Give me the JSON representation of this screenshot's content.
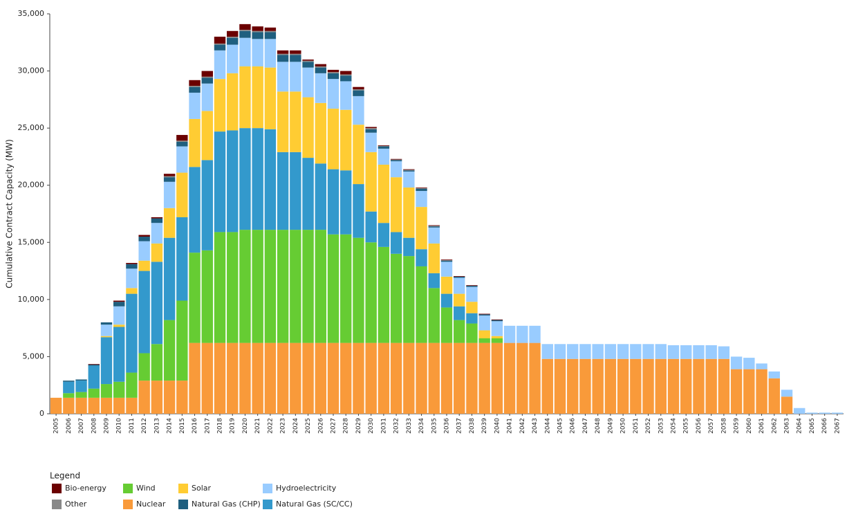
{
  "chart_data": {
    "type": "stacked_bar",
    "y_label": "Cumulative Contract Capacity (MW)",
    "legend_title": "Legend",
    "legend_position": "bottom-left",
    "grid": false,
    "ylim": [
      0,
      35000
    ],
    "yticks": [
      0,
      {
        "value": 5000,
        "label": "5,000"
      },
      {
        "value": 10000,
        "label": "10,000"
      },
      {
        "value": 15000,
        "label": "15,000"
      },
      {
        "value": 20000,
        "label": "20,000"
      },
      {
        "value": 25000,
        "label": "25,000"
      },
      {
        "value": 30000,
        "label": "30,000"
      },
      {
        "value": 35000,
        "label": "35,000"
      }
    ],
    "categories": [
      "2005",
      "2006",
      "2007",
      "2008",
      "2009",
      "2010",
      "2011",
      "2012",
      "2013",
      "2014",
      "2015",
      "2016",
      "2017",
      "2018",
      "2019",
      "2020",
      "2021",
      "2022",
      "2023",
      "2024",
      "2025",
      "2026",
      "2027",
      "2028",
      "2029",
      "2030",
      "2031",
      "2032",
      "2033",
      "2034",
      "2035",
      "2036",
      "2037",
      "2038",
      "2039",
      "2040",
      "2041",
      "2042",
      "2043",
      "2044",
      "2045",
      "2046",
      "2047",
      "2048",
      "2049",
      "2050",
      "2051",
      "2052",
      "2053",
      "2054",
      "2055",
      "2056",
      "2057",
      "2058",
      "2059",
      "2060",
      "2061",
      "2062",
      "2063",
      "2064",
      "2065",
      "2066",
      "2067"
    ],
    "series": [
      {
        "name": "Nuclear",
        "color": "#f99a3a",
        "values": [
          1400,
          1400,
          1400,
          1400,
          1400,
          1400,
          1400,
          2900,
          2900,
          2900,
          2900,
          6200,
          6200,
          6200,
          6200,
          6200,
          6200,
          6200,
          6200,
          6200,
          6200,
          6200,
          6200,
          6200,
          6200,
          6200,
          6200,
          6200,
          6200,
          6200,
          6200,
          6200,
          6200,
          6200,
          6200,
          6200,
          6200,
          6200,
          6200,
          4800,
          4800,
          4800,
          4800,
          4800,
          4800,
          4800,
          4800,
          4800,
          4800,
          4800,
          4800,
          4800,
          4800,
          4800,
          3900,
          3900,
          3900,
          3100,
          1500,
          0,
          0,
          0,
          0
        ]
      },
      {
        "name": "Wind",
        "color": "#66cc33",
        "values": [
          0,
          400,
          500,
          800,
          1200,
          1400,
          2200,
          2400,
          3200,
          5300,
          7000,
          7900,
          8100,
          9700,
          9700,
          9900,
          9900,
          9900,
          9900,
          9900,
          9900,
          9900,
          9500,
          9500,
          9200,
          8800,
          8400,
          7800,
          7600,
          6700,
          4800,
          3100,
          2000,
          1700,
          400,
          400,
          0,
          0,
          0,
          0,
          0,
          0,
          0,
          0,
          0,
          0,
          0,
          0,
          0,
          0,
          0,
          0,
          0,
          0,
          0,
          0,
          0,
          0,
          0,
          0,
          0,
          0,
          0
        ]
      },
      {
        "name": "Natural Gas (SC/CC)",
        "color": "#3399cc",
        "values": [
          0,
          1000,
          1000,
          2000,
          4100,
          4800,
          6900,
          7200,
          7200,
          7200,
          7300,
          7500,
          7900,
          8800,
          8900,
          8900,
          8900,
          8800,
          6800,
          6800,
          6300,
          5800,
          5700,
          5600,
          4700,
          2700,
          2100,
          1900,
          1600,
          1500,
          1300,
          1200,
          1200,
          900,
          0,
          0,
          0,
          0,
          0,
          0,
          0,
          0,
          0,
          0,
          0,
          0,
          0,
          0,
          0,
          0,
          0,
          0,
          0,
          0,
          0,
          0,
          0,
          0,
          0,
          0,
          0,
          0,
          0
        ]
      },
      {
        "name": "Solar",
        "color": "#ffcc33",
        "values": [
          0,
          0,
          0,
          0,
          100,
          200,
          500,
          900,
          1600,
          2600,
          3900,
          4200,
          4300,
          4600,
          5000,
          5400,
          5400,
          5400,
          5300,
          5300,
          5300,
          5300,
          5300,
          5300,
          5200,
          5200,
          5100,
          4800,
          4400,
          3700,
          2600,
          1500,
          1100,
          1000,
          700,
          200,
          0,
          0,
          0,
          0,
          0,
          0,
          0,
          0,
          0,
          0,
          0,
          0,
          0,
          0,
          0,
          0,
          0,
          0,
          0,
          0,
          0,
          0,
          0,
          0,
          0,
          0,
          0
        ]
      },
      {
        "name": "Hydroelectricity",
        "color": "#99ccff",
        "values": [
          0,
          0,
          0,
          0,
          1000,
          1600,
          1700,
          1700,
          1800,
          2300,
          2300,
          2300,
          2400,
          2500,
          2500,
          2500,
          2400,
          2500,
          2600,
          2600,
          2600,
          2600,
          2600,
          2500,
          2500,
          1700,
          1400,
          1400,
          1400,
          1400,
          1400,
          1300,
          1400,
          1300,
          1300,
          1300,
          1500,
          1500,
          1500,
          1300,
          1300,
          1300,
          1300,
          1300,
          1300,
          1300,
          1300,
          1300,
          1300,
          1200,
          1200,
          1200,
          1200,
          1100,
          1100,
          1000,
          500,
          600,
          600,
          500,
          100,
          100,
          100
        ]
      },
      {
        "name": "Natural Gas (CHP)",
        "color": "#1f5f7f",
        "values": [
          0,
          100,
          100,
          100,
          200,
          400,
          400,
          400,
          400,
          400,
          400,
          500,
          500,
          500,
          600,
          600,
          600,
          600,
          600,
          600,
          500,
          500,
          500,
          500,
          500,
          300,
          200,
          100,
          100,
          200,
          100,
          100,
          100,
          100,
          100,
          100,
          0,
          0,
          0,
          0,
          0,
          0,
          0,
          0,
          0,
          0,
          0,
          0,
          0,
          0,
          0,
          0,
          0,
          0,
          0,
          0,
          0,
          0,
          0,
          0,
          0,
          0,
          0
        ]
      },
      {
        "name": "Other",
        "color": "#888888",
        "values": [
          0,
          0,
          0,
          0,
          0,
          0,
          0,
          0,
          0,
          100,
          100,
          100,
          100,
          100,
          100,
          100,
          100,
          100,
          100,
          100,
          100,
          100,
          100,
          100,
          100,
          100,
          50,
          50,
          50,
          50,
          50,
          50,
          0,
          0,
          0,
          0,
          0,
          0,
          0,
          0,
          0,
          0,
          0,
          0,
          0,
          0,
          0,
          0,
          0,
          0,
          0,
          0,
          0,
          0,
          0,
          0,
          0,
          0,
          0,
          0,
          0,
          0,
          0
        ]
      },
      {
        "name": "Bio-energy",
        "color": "#6b0000",
        "values": [
          0,
          0,
          0,
          50,
          0,
          100,
          100,
          150,
          100,
          200,
          500,
          500,
          500,
          600,
          500,
          500,
          400,
          300,
          300,
          300,
          100,
          200,
          200,
          300,
          200,
          100,
          50,
          50,
          50,
          50,
          50,
          50,
          50,
          50,
          50,
          50,
          0,
          0,
          0,
          0,
          0,
          0,
          0,
          0,
          0,
          0,
          0,
          0,
          0,
          0,
          0,
          0,
          0,
          0,
          0,
          0,
          0,
          0,
          0,
          0,
          0,
          0,
          0
        ]
      }
    ]
  }
}
